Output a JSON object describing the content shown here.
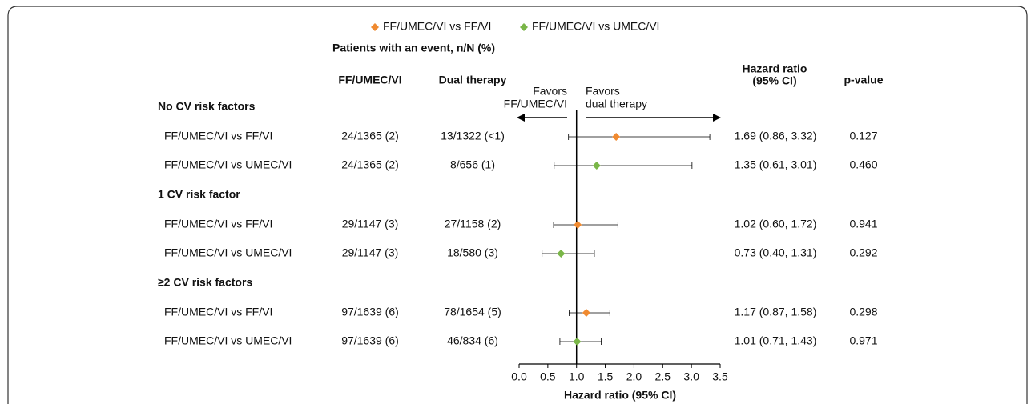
{
  "chart_data": {
    "type": "forest",
    "series": [
      {
        "name": "FF/UMEC/VI vs FF/VI",
        "color": "#f08a30"
      },
      {
        "name": "FF/UMEC/VI vs UMEC/VI",
        "color": "#7ab648"
      }
    ],
    "group_header": "Patients with an event, n/N (%)",
    "col_triple": "FF/UMEC/VI",
    "col_dual": "Dual therapy",
    "col_hr": [
      "Hazard ratio",
      "(95% CI)"
    ],
    "col_p": "p-value",
    "favors_left": [
      "Favors",
      "FF/UMEC/VI"
    ],
    "favors_right": [
      "Favors",
      "dual therapy"
    ],
    "xlabel": "Hazard ratio (95% CI)",
    "xlim": [
      0,
      3.5
    ],
    "xticks": [
      {
        "value": 0,
        "label": "0.0"
      },
      0.5,
      {
        "value": 1,
        "label": "1.0"
      },
      1.5,
      {
        "value": 2,
        "label": "2.0"
      },
      2.5,
      {
        "value": 3,
        "label": "3.0"
      },
      3.5
    ],
    "reference": 1,
    "groups": [
      {
        "name": "No CV risk factors",
        "rows": [
          {
            "label": "FF/UMEC/VI vs FF/VI",
            "color": "#f08a30",
            "triple": "24/1365 (2)",
            "dual": "13/1322 (<1)",
            "hr": 1.69,
            "lo": 0.86,
            "hi": 3.32,
            "hr_label": "1.69 (0.86, 3.32)",
            "p": "0.127"
          },
          {
            "label": "FF/UMEC/VI vs UMEC/VI",
            "color": "#7ab648",
            "triple": "24/1365 (2)",
            "dual": "8/656 (1)",
            "hr": 1.35,
            "lo": 0.61,
            "hi": 3.01,
            "hr_label": "1.35 (0.61, 3.01)",
            "p": "0.460"
          }
        ]
      },
      {
        "name": "1 CV risk factor",
        "rows": [
          {
            "label": "FF/UMEC/VI vs FF/VI",
            "color": "#f08a30",
            "triple": "29/1147 (3)",
            "dual": "27/1158 (2)",
            "hr": 1.02,
            "lo": 0.6,
            "hi": 1.72,
            "hr_label": "1.02 (0.60, 1.72)",
            "p": "0.941"
          },
          {
            "label": "FF/UMEC/VI vs UMEC/VI",
            "color": "#7ab648",
            "triple": "29/1147 (3)",
            "dual": "18/580 (3)",
            "hr": 0.73,
            "lo": 0.4,
            "hi": 1.31,
            "hr_label": "0.73 (0.40, 1.31)",
            "p": "0.292"
          }
        ]
      },
      {
        "name": "≥2 CV risk factors",
        "rows": [
          {
            "label": "FF/UMEC/VI vs FF/VI",
            "color": "#f08a30",
            "triple": "97/1639 (6)",
            "dual": "78/1654 (5)",
            "hr": 1.17,
            "lo": 0.87,
            "hi": 1.58,
            "hr_label": "1.17 (0.87, 1.58)",
            "p": "0.298"
          },
          {
            "label": "FF/UMEC/VI vs UMEC/VI",
            "color": "#7ab648",
            "triple": "97/1639 (6)",
            "dual": "46/834 (6)",
            "hr": 1.01,
            "lo": 0.71,
            "hi": 1.43,
            "hr_label": "1.01 (0.71, 1.43)",
            "p": "0.971"
          }
        ]
      }
    ]
  }
}
